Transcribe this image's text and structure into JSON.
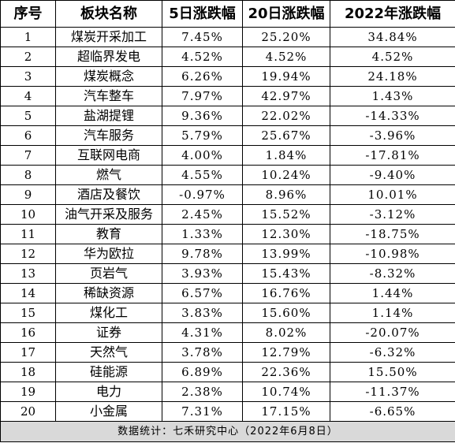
{
  "headers": [
    "序号",
    "板块名称",
    "5日涨跌幅",
    "20日涨跌幅",
    "2022年涨跌幅"
  ],
  "rows": [
    {
      "no": "1",
      "name": "煤炭开采加工",
      "d5": "7.45%",
      "d20": "25.20%",
      "y2022": "34.84%"
    },
    {
      "no": "2",
      "name": "超临界发电",
      "d5": "4.52%",
      "d20": "4.52%",
      "y2022": "4.52%"
    },
    {
      "no": "3",
      "name": "煤炭概念",
      "d5": "6.26%",
      "d20": "19.94%",
      "y2022": "24.18%"
    },
    {
      "no": "4",
      "name": "汽车整车",
      "d5": "7.97%",
      "d20": "42.97%",
      "y2022": "1.43%"
    },
    {
      "no": "5",
      "name": "盐湖提锂",
      "d5": "9.36%",
      "d20": "22.02%",
      "y2022": "-14.33%"
    },
    {
      "no": "6",
      "name": "汽车服务",
      "d5": "5.79%",
      "d20": "25.67%",
      "y2022": "-3.96%"
    },
    {
      "no": "7",
      "name": "互联网电商",
      "d5": "4.00%",
      "d20": "1.84%",
      "y2022": "-17.81%"
    },
    {
      "no": "8",
      "name": "燃气",
      "d5": "4.55%",
      "d20": "10.24%",
      "y2022": "-9.40%"
    },
    {
      "no": "9",
      "name": "酒店及餐饮",
      "d5": "-0.97%",
      "d20": "8.96%",
      "y2022": "10.01%"
    },
    {
      "no": "10",
      "name": "油气开采及服务",
      "d5": "2.45%",
      "d20": "15.52%",
      "y2022": "-3.12%"
    },
    {
      "no": "11",
      "name": "教育",
      "d5": "1.33%",
      "d20": "12.30%",
      "y2022": "-18.75%"
    },
    {
      "no": "12",
      "name": "华为欧拉",
      "d5": "9.78%",
      "d20": "13.99%",
      "y2022": "-10.98%"
    },
    {
      "no": "13",
      "name": "页岩气",
      "d5": "3.93%",
      "d20": "15.43%",
      "y2022": "-8.32%"
    },
    {
      "no": "14",
      "name": "稀缺资源",
      "d5": "6.57%",
      "d20": "16.76%",
      "y2022": "1.44%"
    },
    {
      "no": "15",
      "name": "煤化工",
      "d5": "3.83%",
      "d20": "15.60%",
      "y2022": "1.14%"
    },
    {
      "no": "16",
      "name": "证券",
      "d5": "4.31%",
      "d20": "8.02%",
      "y2022": "-20.07%"
    },
    {
      "no": "17",
      "name": "天然气",
      "d5": "3.78%",
      "d20": "12.79%",
      "y2022": "-6.32%"
    },
    {
      "no": "18",
      "name": "硅能源",
      "d5": "6.89%",
      "d20": "22.36%",
      "y2022": "15.50%"
    },
    {
      "no": "19",
      "name": "电力",
      "d5": "2.38%",
      "d20": "10.74%",
      "y2022": "-11.37%"
    },
    {
      "no": "20",
      "name": "小金属",
      "d5": "7.31%",
      "d20": "17.15%",
      "y2022": "-6.65%"
    }
  ],
  "footer": "数据统计：七禾研究中心（2022年6月8日）"
}
